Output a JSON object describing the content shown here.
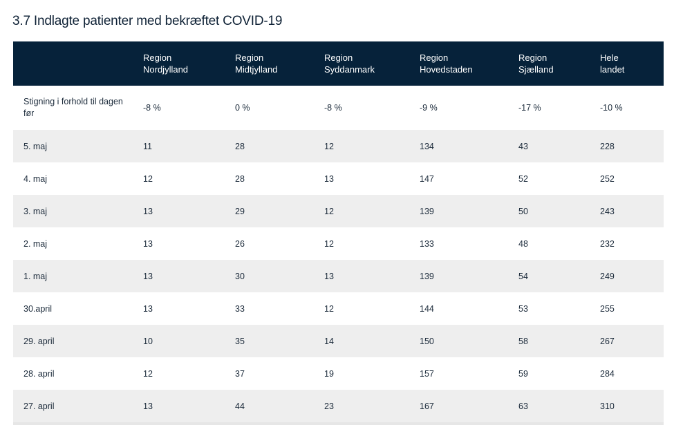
{
  "title": "3.7 Indlagte patienter med bekræftet COVID-19",
  "table": {
    "headers": [
      {
        "line1": "",
        "line2": ""
      },
      {
        "line1": "Region",
        "line2": "Nordjylland"
      },
      {
        "line1": "Region",
        "line2": "Midtjylland"
      },
      {
        "line1": "Region",
        "line2": "Syddanmark"
      },
      {
        "line1": "Region",
        "line2": "Hovedstaden"
      },
      {
        "line1": "Region",
        "line2": "Sjælland"
      },
      {
        "line1": "Hele",
        "line2": "landet"
      }
    ],
    "change_row": {
      "label_line1": "Stigning i forhold til dagen",
      "label_line2": "før",
      "values": [
        "-8 %",
        "0 %",
        "-8 %",
        "-9 %",
        "-17 %",
        "-10 %"
      ]
    },
    "rows": [
      {
        "date": "5. maj",
        "values": [
          "11",
          "28",
          "12",
          "134",
          "43",
          "228"
        ]
      },
      {
        "date": "4. maj",
        "values": [
          "12",
          "28",
          "13",
          "147",
          "52",
          "252"
        ]
      },
      {
        "date": "3. maj",
        "values": [
          "13",
          "29",
          "12",
          "139",
          "50",
          "243"
        ]
      },
      {
        "date": "2. maj",
        "values": [
          "13",
          "26",
          "12",
          "133",
          "48",
          "232"
        ]
      },
      {
        "date": "1. maj",
        "values": [
          "13",
          "30",
          "13",
          "139",
          "54",
          "249"
        ]
      },
      {
        "date": "30.april",
        "values": [
          "13",
          "33",
          "12",
          "144",
          "53",
          "255"
        ]
      },
      {
        "date": "29. april",
        "values": [
          "10",
          "35",
          "14",
          "150",
          "58",
          "267"
        ]
      },
      {
        "date": "28. april",
        "values": [
          "12",
          "37",
          "19",
          "157",
          "59",
          "284"
        ]
      },
      {
        "date": "27. april",
        "values": [
          "13",
          "44",
          "23",
          "167",
          "63",
          "310"
        ]
      }
    ]
  }
}
